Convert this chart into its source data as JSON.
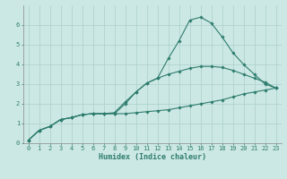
{
  "xlabel": "Humidex (Indice chaleur)",
  "bg_color": "#cce8e4",
  "line_color": "#2e7d6e",
  "grid_color": "#aacfcb",
  "xlim": [
    -0.5,
    23.5
  ],
  "ylim": [
    0,
    7
  ],
  "xticks": [
    0,
    1,
    2,
    3,
    4,
    5,
    6,
    7,
    8,
    9,
    10,
    11,
    12,
    13,
    14,
    15,
    16,
    17,
    18,
    19,
    20,
    21,
    22,
    23
  ],
  "yticks": [
    0,
    1,
    2,
    3,
    4,
    5,
    6
  ],
  "line1_x": [
    0,
    1,
    2,
    3,
    4,
    5,
    6,
    7,
    8,
    9,
    10,
    11,
    12,
    13,
    14,
    15,
    16,
    17,
    18,
    19,
    20,
    21,
    22,
    23
  ],
  "line1_y": [
    0.15,
    0.65,
    0.85,
    1.2,
    1.3,
    1.45,
    1.5,
    1.5,
    1.5,
    2.0,
    2.6,
    3.05,
    3.3,
    4.3,
    5.2,
    6.25,
    6.4,
    6.1,
    5.4,
    4.6,
    4.0,
    3.5,
    3.0,
    2.8
  ],
  "line2_x": [
    0,
    1,
    2,
    3,
    4,
    5,
    6,
    7,
    8,
    9,
    10,
    11,
    12,
    13,
    14,
    15,
    16,
    17,
    18,
    19,
    20,
    21,
    22,
    23
  ],
  "line2_y": [
    0.15,
    0.65,
    0.85,
    1.2,
    1.3,
    1.45,
    1.5,
    1.5,
    1.5,
    1.5,
    1.55,
    1.6,
    1.65,
    1.7,
    1.8,
    1.9,
    2.0,
    2.1,
    2.2,
    2.35,
    2.5,
    2.6,
    2.7,
    2.8
  ],
  "line3_x": [
    0,
    1,
    2,
    3,
    4,
    5,
    6,
    7,
    8,
    9,
    10,
    11,
    12,
    13,
    14,
    15,
    16,
    17,
    18,
    19,
    20,
    21,
    22,
    23
  ],
  "line3_y": [
    0.15,
    0.65,
    0.85,
    1.2,
    1.3,
    1.45,
    1.5,
    1.5,
    1.55,
    2.1,
    2.6,
    3.05,
    3.3,
    3.5,
    3.65,
    3.8,
    3.9,
    3.9,
    3.85,
    3.7,
    3.5,
    3.3,
    3.1,
    2.8
  ],
  "tick_fontsize": 5.0,
  "xlabel_fontsize": 6.0
}
